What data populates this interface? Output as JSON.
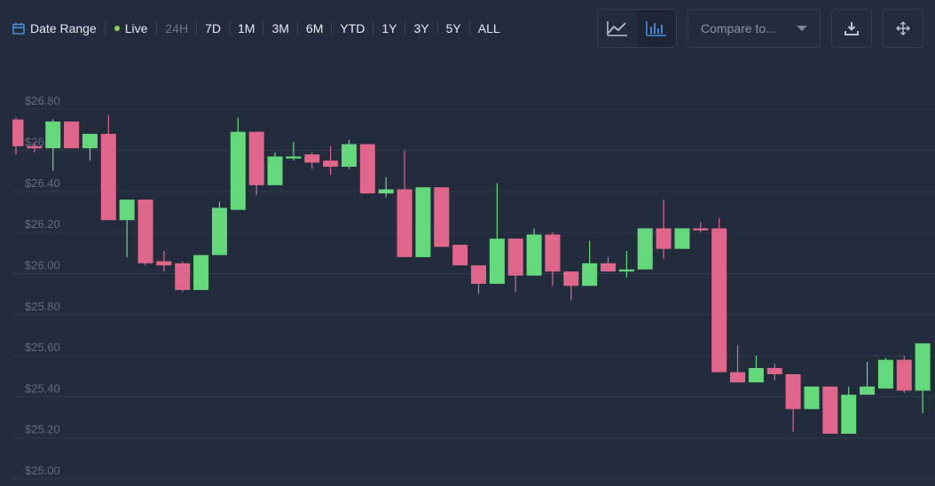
{
  "toolbar": {
    "date_range": "Date Range",
    "live": "Live",
    "ranges": [
      "24H",
      "7D",
      "1M",
      "3M",
      "6M",
      "YTD",
      "1Y",
      "3Y",
      "5Y",
      "ALL"
    ],
    "compare_placeholder": "Compare to..."
  },
  "chart_data": {
    "type": "candlestick",
    "up_color": "#63d97b",
    "down_color": "#e0668c",
    "open": [
      26.75,
      26.62,
      26.61,
      26.74,
      26.61,
      26.68,
      26.26,
      26.36,
      26.06,
      26.05,
      25.92,
      26.09,
      26.31,
      26.69,
      26.43,
      26.56,
      26.58,
      26.55,
      26.52,
      26.63,
      26.39,
      26.41,
      26.08,
      26.42,
      26.14,
      26.04,
      25.95,
      26.17,
      25.99,
      26.19,
      26.01,
      25.94,
      26.05,
      26.01,
      26.02,
      26.22,
      26.12,
      26.22,
      26.22,
      25.52,
      25.47,
      25.54,
      25.51,
      25.34,
      25.45,
      25.22,
      25.41,
      25.44,
      25.58,
      25.43
    ],
    "high": [
      26.76,
      26.64,
      26.75,
      26.74,
      26.68,
      26.77,
      26.36,
      26.36,
      26.11,
      26.06,
      26.09,
      26.35,
      26.76,
      26.69,
      26.59,
      26.64,
      26.59,
      26.62,
      26.65,
      26.63,
      26.47,
      26.6,
      26.42,
      26.42,
      26.14,
      26.04,
      26.44,
      26.17,
      26.22,
      26.2,
      26.01,
      26.16,
      26.08,
      26.11,
      26.22,
      26.36,
      26.22,
      26.25,
      26.27,
      25.65,
      25.6,
      25.56,
      25.51,
      25.45,
      25.45,
      25.45,
      25.57,
      25.59,
      25.6,
      25.66
    ],
    "low": [
      26.58,
      26.59,
      26.5,
      26.61,
      26.55,
      26.26,
      26.08,
      26.04,
      26.01,
      25.91,
      25.92,
      26.09,
      26.31,
      26.38,
      26.43,
      26.55,
      26.51,
      26.48,
      26.51,
      26.39,
      26.37,
      26.08,
      26.08,
      26.13,
      26.04,
      25.9,
      25.95,
      25.91,
      25.99,
      25.94,
      25.87,
      25.94,
      26.01,
      25.98,
      26.02,
      26.07,
      26.12,
      26.2,
      25.52,
      25.47,
      25.47,
      25.48,
      25.23,
      25.34,
      25.22,
      25.22,
      25.41,
      25.44,
      25.42,
      25.32
    ],
    "close": [
      26.62,
      26.61,
      26.74,
      26.61,
      26.68,
      26.26,
      26.36,
      26.05,
      26.04,
      25.92,
      26.09,
      26.32,
      26.69,
      26.43,
      26.57,
      26.57,
      26.54,
      26.52,
      26.63,
      26.39,
      26.41,
      26.08,
      26.42,
      26.13,
      26.04,
      25.95,
      26.17,
      25.99,
      26.19,
      26.01,
      25.94,
      26.05,
      26.01,
      26.02,
      26.22,
      26.12,
      26.22,
      26.21,
      25.52,
      25.47,
      25.54,
      25.51,
      25.34,
      25.45,
      25.22,
      25.41,
      25.45,
      25.58,
      25.43,
      25.66
    ],
    "ylim": [
      24.97,
      26.9
    ],
    "yticks": [
      {
        "value": 25.0,
        "label": "$25.00"
      },
      {
        "value": 25.2,
        "label": "$25.20"
      },
      {
        "value": 25.4,
        "label": "$25.40"
      },
      {
        "value": 25.6,
        "label": "$25.60"
      },
      {
        "value": 25.8,
        "label": "$25.80"
      },
      {
        "value": 26.0,
        "label": "$26.00"
      },
      {
        "value": 26.2,
        "label": "$26.20"
      },
      {
        "value": 26.4,
        "label": "$26.40"
      },
      {
        "value": 26.6,
        "label": "$26.60"
      },
      {
        "value": 26.8,
        "label": "$26.80"
      }
    ],
    "grid": true
  }
}
